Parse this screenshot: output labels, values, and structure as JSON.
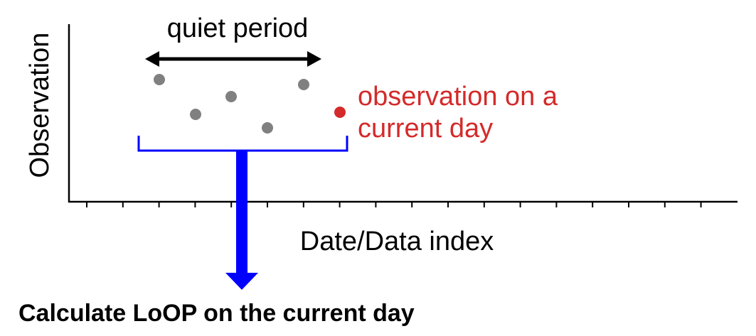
{
  "diagram": {
    "y_axis_label": "Observation",
    "x_axis_label": "Date/Data index",
    "quiet_period_label": "quiet period",
    "current_observation_label_line1": "observation on a",
    "current_observation_label_line2": "current day",
    "result_label": "Calculate LoOP on the current day"
  },
  "colors": {
    "past_point": "#808080",
    "current_point": "#d42a2a",
    "current_label": "#d42a2a",
    "bracket_and_arrow": "#0000ff",
    "axes": "#000000",
    "text": "#000000"
  }
}
